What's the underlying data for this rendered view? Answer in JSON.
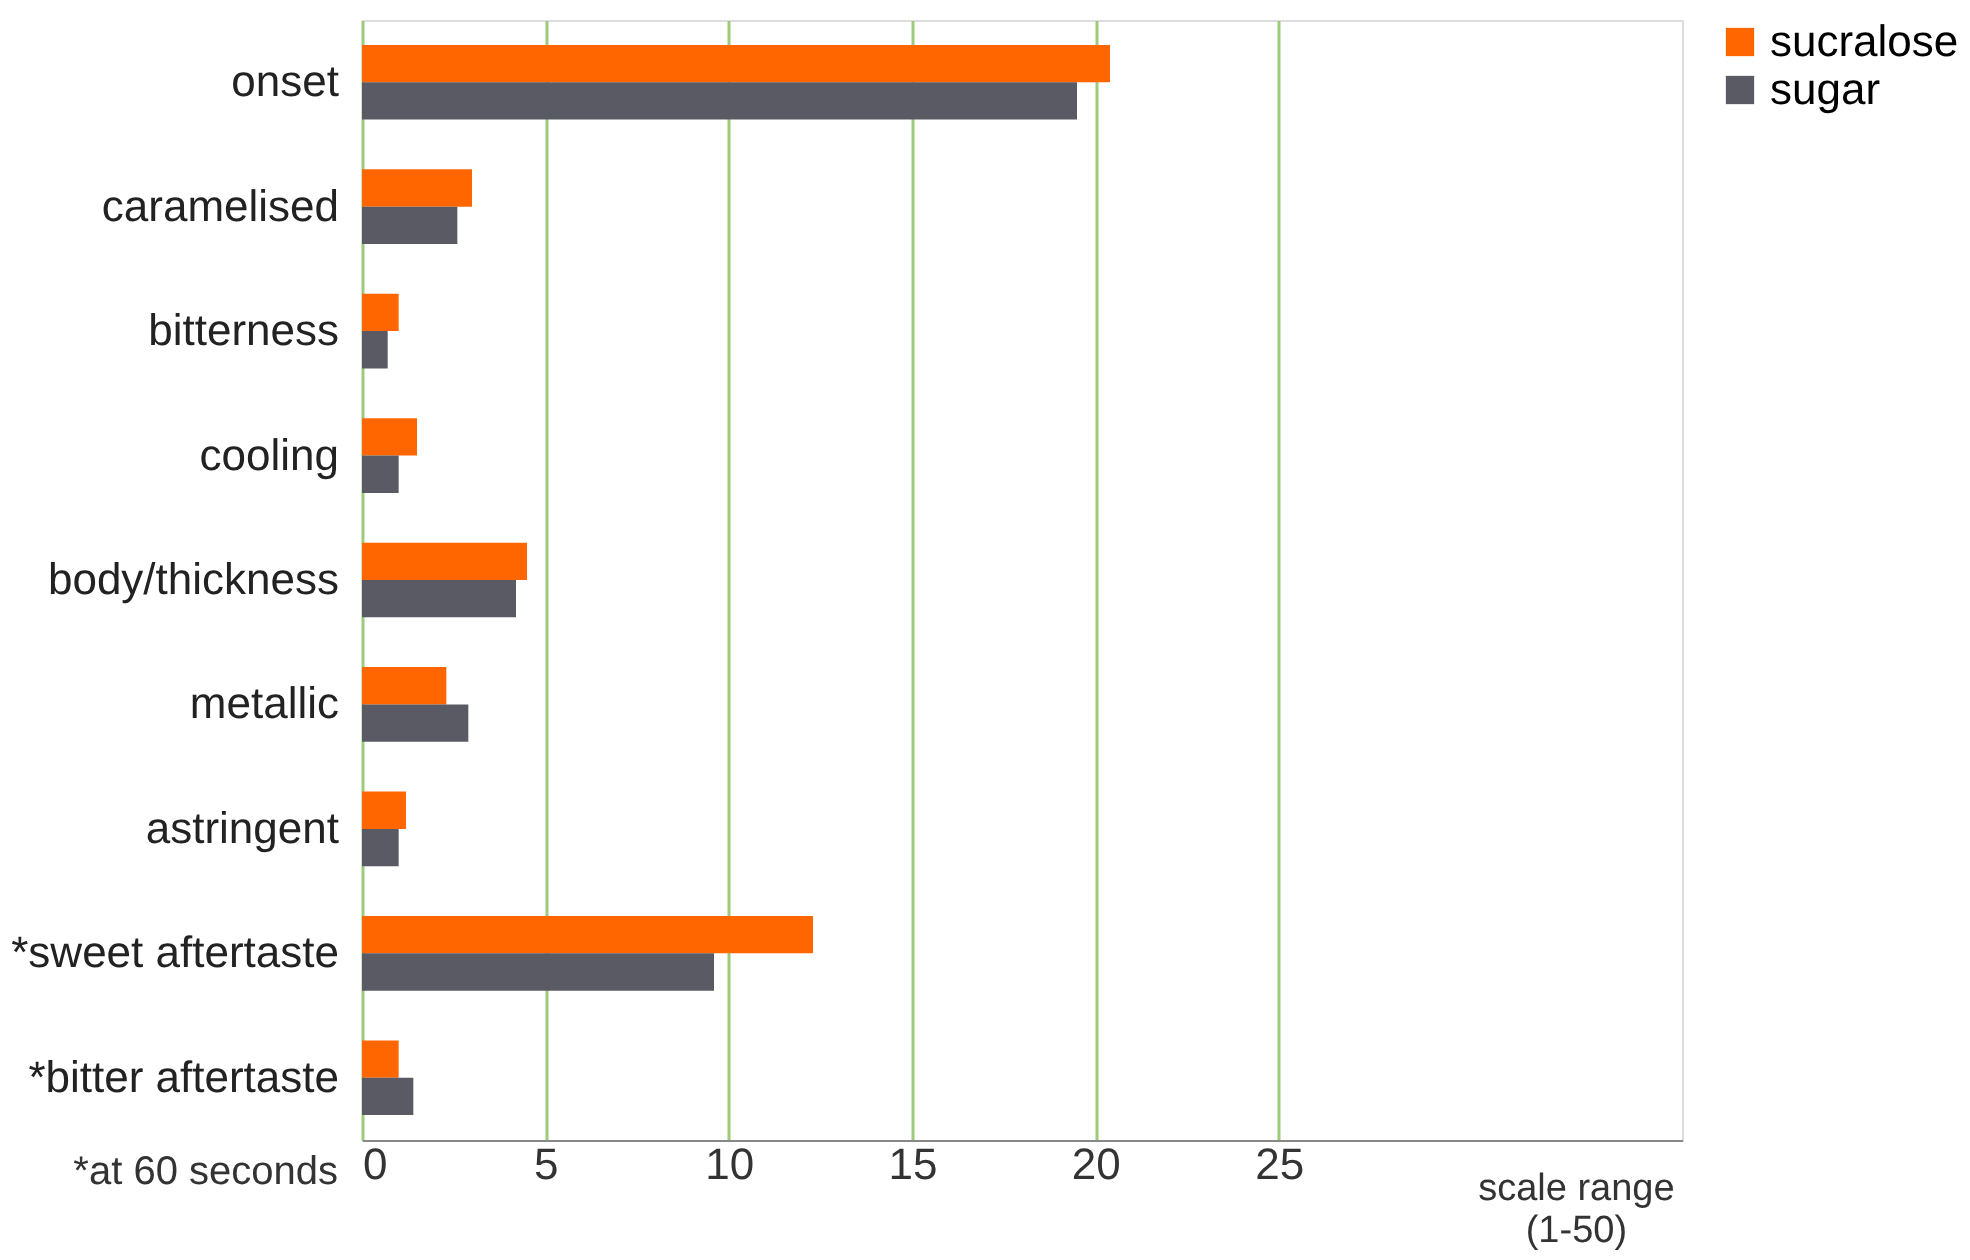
{
  "chart_data": {
    "type": "bar",
    "orientation": "horizontal",
    "categories": [
      "onset",
      "caramelised",
      "bitterness",
      "cooling",
      "body/thickness",
      "metallic",
      "astringent",
      "*sweet aftertaste",
      "*bitter aftertaste"
    ],
    "series": [
      {
        "name": "sucralose",
        "color": "#ff6600",
        "values": [
          20.4,
          3.0,
          1.0,
          1.5,
          4.5,
          2.3,
          1.2,
          12.3,
          1.0
        ]
      },
      {
        "name": "sugar",
        "color": "#5a5a64",
        "values": [
          19.5,
          2.6,
          0.7,
          1.0,
          4.2,
          2.9,
          1.0,
          9.6,
          1.4
        ]
      }
    ],
    "xlim": [
      0,
      36
    ],
    "xticks": [
      0,
      5,
      10,
      15,
      20,
      25
    ],
    "grid": "x",
    "legend": "right",
    "annotations": [
      "*at 60 seconds",
      "scale range (1-50)"
    ]
  }
}
